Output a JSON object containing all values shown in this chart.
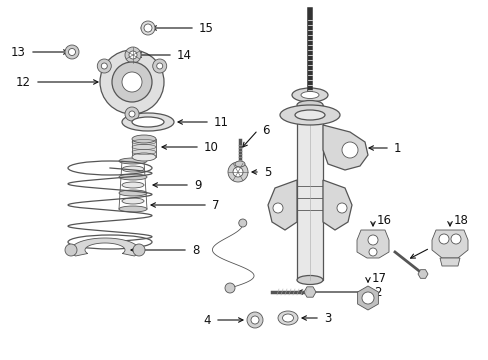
{
  "background_color": "#ffffff",
  "fig_width": 4.89,
  "fig_height": 3.6,
  "dpi": 100,
  "label_fontsize": 8.5,
  "label_color": "#111111",
  "arrow_color": "#111111",
  "gray": "#555555",
  "lgray": "#aaaaaa",
  "dgray": "#333333"
}
